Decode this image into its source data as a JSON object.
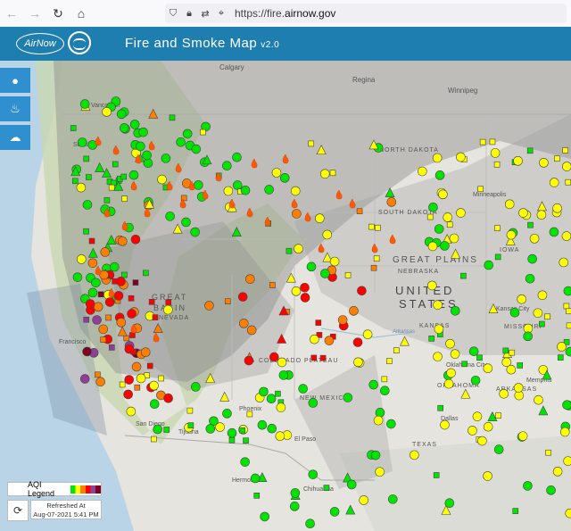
{
  "browser": {
    "url_prefix": "https://fire.",
    "url_domain": "airnow.gov",
    "back_icon": "back-arrow-icon",
    "forward_icon": "forward-arrow-icon",
    "reload_icon": "reload-icon",
    "home_icon": "home-icon"
  },
  "header": {
    "logo_text": "AirNow",
    "title": "Fire and Smoke Map",
    "version": "v2.0",
    "background": "#1f7eb0"
  },
  "sidebar": {
    "buttons": [
      {
        "icon": "monitor-dot-icon",
        "glyph": "●"
      },
      {
        "icon": "fire-icon",
        "glyph": "🔥"
      },
      {
        "icon": "smoke-cloud-icon",
        "glyph": "☁"
      }
    ]
  },
  "map": {
    "labels": {
      "calgary": "Calgary",
      "regina": "Regina",
      "winnipeg": "Winnipeg",
      "vancouver": "Vancouver",
      "seattle": "Seattle",
      "north_dakota": "NORTH DAKOTA",
      "south_dakota": "SOUTH DAKOTA",
      "minneapolis": "Minneapolis",
      "iowa": "IOWA",
      "great_plains": "GREAT PLAINS",
      "nebraska": "NEBRASKA",
      "united_states_1": "UNITED",
      "united_states_2": "STATES",
      "kansas": "KANSAS",
      "kansas_city": "Kansas City",
      "missouri": "MISSOURI",
      "great_basin_1": "GREAT",
      "great_basin_2": "BASIN",
      "nevada": "NEVADA",
      "colorado_plateau": "COLORADO PLATEAU",
      "san_francisco": "Francisco",
      "new_mexico": "NEW MEXICO",
      "oklahoma": "OKLAHOMA",
      "oklahoma_city": "Oklahoma City",
      "arkansas": "ARKANSAS",
      "memphis": "Memphis",
      "phoenix": "Phoenix",
      "san_diego": "San Diego",
      "tijuana": "Tijuana",
      "el_paso": "El Paso",
      "texas": "TEXAS",
      "dallas": "Dallas",
      "hermosillo": "Hermosillo",
      "chihuahua": "Chihuahua",
      "arkansas_river": "Arkansas"
    }
  },
  "legend": {
    "label": "AQI Legend",
    "colors": [
      "#00e400",
      "#ffff00",
      "#ff7e00",
      "#ff0000",
      "#8f3f97",
      "#7e0023"
    ]
  },
  "refresh": {
    "label": "Refreshed At",
    "timestamp": "Aug-07-2021 5:41 PM"
  }
}
